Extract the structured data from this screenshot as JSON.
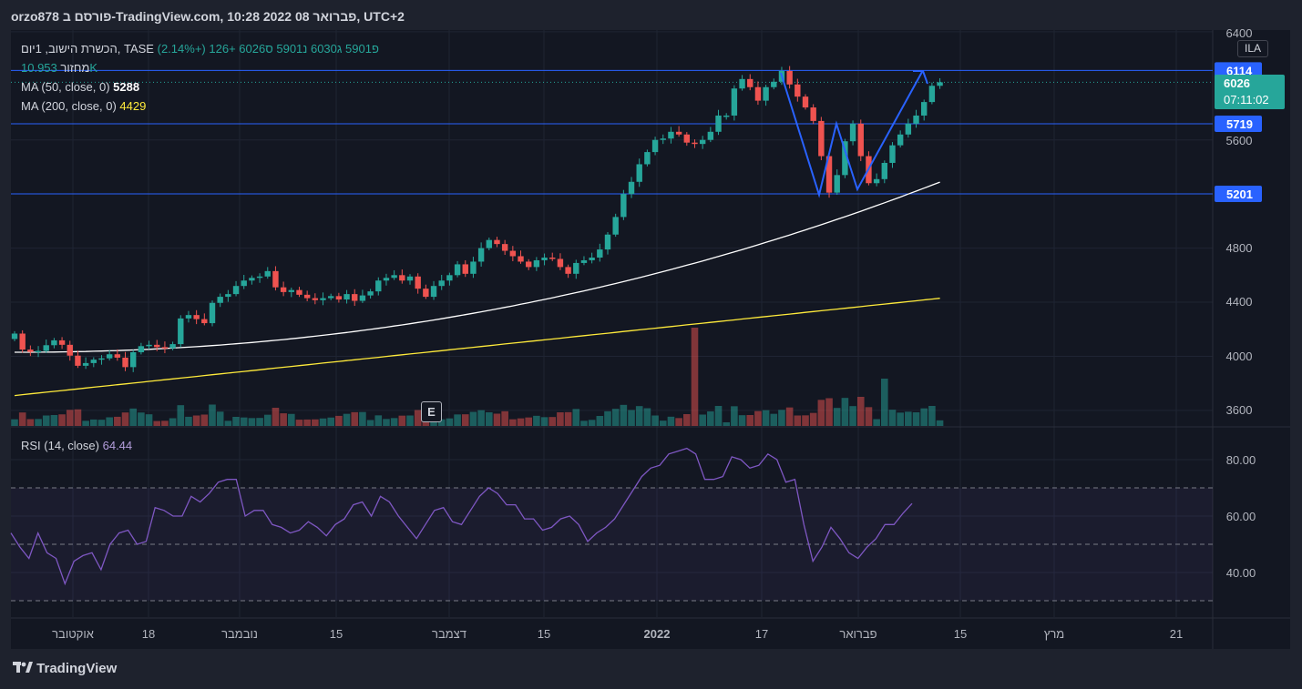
{
  "header": {
    "title": "orzo878 פורסם ב-TradingView.com, 10:28 2022 פברואר 08, UTC+2"
  },
  "legend": {
    "symbol": "הכשרת הישוב, 1יום, TASE",
    "open_label": "פ",
    "open": "5901",
    "high_label": "ג",
    "high": "6030",
    "low_label": "נ",
    "low": "5901",
    "close_label": "ס",
    "close": "6026",
    "change": "+126 (+2.14%)",
    "volume_label": "מחזור",
    "volume": "10.953K",
    "ma50_label": "MA (50, close, 0)",
    "ma50_value": "5288",
    "ma200_label": "MA (200, close, 0)",
    "ma200_value": "4429",
    "rsi_label": "RSI (14, close)",
    "rsi_value": "64.44"
  },
  "badges": {
    "ila": "ILA",
    "earnings": "E",
    "level_6114": "6114",
    "price": "6026",
    "countdown": "07:11:02",
    "level_5719": "5719",
    "level_5201": "5201"
  },
  "colors": {
    "up": "#26a69a",
    "down": "#ef5350",
    "ma50": "#ffffff",
    "ma200": "#ffeb3b",
    "rsi": "#7e57c2",
    "level": "#2962ff",
    "price_badge": "#26a69a"
  },
  "branding": {
    "logo_text": "TradingView"
  },
  "chart_data": [
    {
      "type": "candlestick",
      "title": "הכשרת הישוב, 1יום, TASE",
      "y_ticks": [
        "6400",
        "5600",
        "4800",
        "4400",
        "4000",
        "3600"
      ],
      "x_ticks": [
        "אוקטובר",
        "18",
        "נובמבר",
        "15",
        "דצמבר",
        "15",
        "2022",
        "17",
        "פברואר",
        "15",
        "מרץ",
        "21"
      ],
      "ylim": [
        3530,
        6530
      ],
      "close": [
        4168,
        4050,
        4032,
        4040,
        4082,
        4118,
        4085,
        4005,
        3930,
        3950,
        3975,
        3985,
        4015,
        3990,
        3920,
        4030,
        4075,
        4085,
        4068,
        4060,
        4090,
        4280,
        4305,
        4275,
        4245,
        4395,
        4440,
        4460,
        4520,
        4560,
        4580,
        4590,
        4630,
        4510,
        4475,
        4490,
        4455,
        4430,
        4415,
        4430,
        4445,
        4420,
        4460,
        4410,
        4450,
        4480,
        4560,
        4580,
        4600,
        4560,
        4590,
        4500,
        4440,
        4520,
        4560,
        4600,
        4680,
        4610,
        4700,
        4800,
        4860,
        4830,
        4780,
        4740,
        4700,
        4660,
        4710,
        4730,
        4720,
        4660,
        4610,
        4690,
        4710,
        4730,
        4790,
        4900,
        5030,
        5200,
        5290,
        5420,
        5510,
        5600,
        5610,
        5660,
        5640,
        5580,
        5570,
        5600,
        5660,
        5780,
        5780,
        5980,
        6050,
        5990,
        5890,
        5990,
        6030,
        6110,
        6010,
        5920,
        5840,
        5740,
        5480,
        5210,
        5340,
        5590,
        5720,
        5480,
        5280,
        5310,
        5430,
        5560,
        5640,
        5720,
        5780,
        5880,
        6000,
        6026
      ],
      "volume_note": "daily volume bars with one spike in early January 2022",
      "series": [
        {
          "name": "MA (50, close, 0)",
          "last": 5288
        },
        {
          "name": "MA (200, close, 0)",
          "last": 4429
        }
      ],
      "levels": [
        6114,
        5719,
        5201
      ],
      "last_price": 6026
    },
    {
      "type": "line",
      "title": "RSI (14, close)",
      "y_ticks": [
        "80.00",
        "60.00",
        "40.00"
      ],
      "ylim": [
        25,
        90
      ],
      "bands": [
        70,
        50,
        30
      ],
      "values": [
        54,
        49,
        45,
        54,
        47,
        45,
        36,
        44,
        46,
        47,
        41,
        50,
        54,
        55,
        50,
        51,
        63,
        62,
        60,
        60,
        67,
        65,
        68,
        72,
        73,
        73,
        60,
        62,
        62,
        57,
        56,
        54,
        55,
        58,
        56,
        53,
        57,
        59,
        64,
        65,
        60,
        67,
        65,
        60,
        56,
        52,
        57,
        62,
        63,
        58,
        57,
        62,
        67,
        70,
        68,
        64,
        64,
        59,
        59,
        55,
        56,
        59,
        60,
        57,
        51,
        54,
        56,
        59,
        64,
        69,
        74,
        77,
        78,
        82,
        83,
        84,
        82,
        73,
        73,
        74,
        81,
        80,
        77,
        78,
        82,
        80,
        72,
        73,
        57,
        44,
        49,
        56,
        52,
        47,
        45,
        49,
        52,
        57,
        57,
        61,
        64.44
      ]
    }
  ]
}
